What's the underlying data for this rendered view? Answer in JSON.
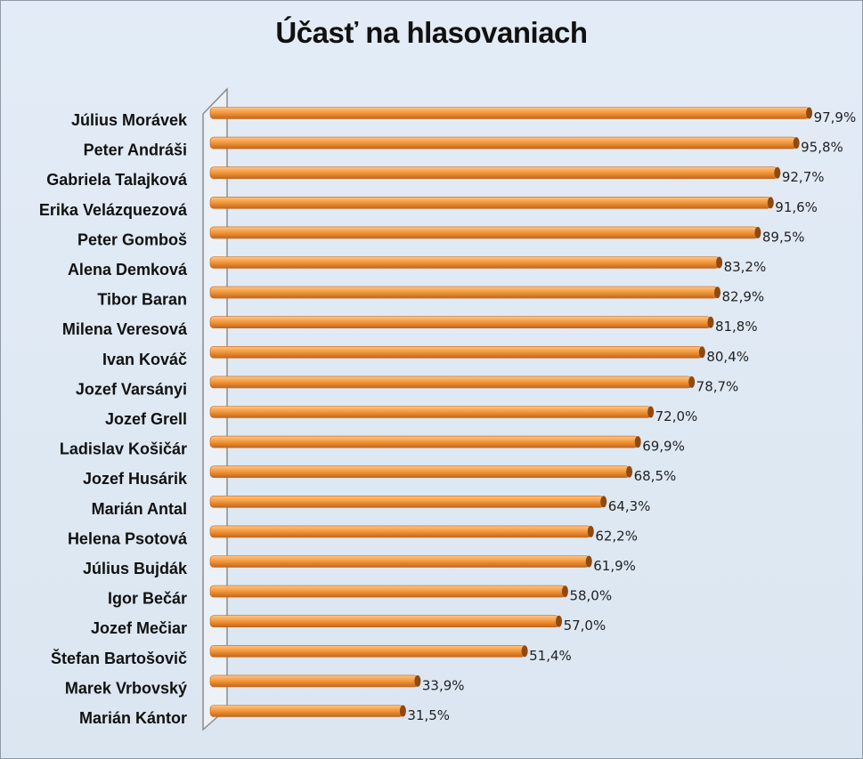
{
  "chart_data": {
    "type": "bar",
    "orientation": "horizontal",
    "title": "Účasť na hlasovaniach",
    "xlim": [
      0,
      100
    ],
    "grid": false,
    "legend": "none",
    "categories": [
      "Július Morávek",
      "Peter Andráši",
      "Gabriela Talajková",
      "Erika Velázquezová",
      "Peter Gomboš",
      "Alena Demková",
      "Tibor Baran",
      "Milena Veresová",
      "Ivan Kováč",
      "Jozef Varsányi",
      "Jozef Grell",
      "Ladislav Košičár",
      "Jozef Husárik",
      "Marián Antal",
      "Helena Psotová",
      "Július Bujdák",
      "Igor Bečár",
      "Jozef Mečiar",
      "Štefan Bartošovič",
      "Marek Vrbovský",
      "Marián Kántor"
    ],
    "values": [
      97.9,
      95.8,
      92.7,
      91.6,
      89.5,
      83.2,
      82.9,
      81.8,
      80.4,
      78.7,
      72.0,
      69.9,
      68.5,
      64.3,
      62.2,
      61.9,
      58.0,
      57.0,
      51.4,
      33.9,
      31.5
    ],
    "data_labels": [
      "97,9%",
      "95,8%",
      "92,7%",
      "91,6%",
      "89,5%",
      "83,2%",
      "82,9%",
      "81,8%",
      "80,4%",
      "78,7%",
      "72,0%",
      "69,9%",
      "68,5%",
      "64,3%",
      "62,2%",
      "61,9%",
      "58,0%",
      "57,0%",
      "51,4%",
      "33,9%",
      "31,5%"
    ],
    "colors": {
      "bar": "#f59a3c",
      "bar_light": "#fcc58a",
      "bar_dark": "#c4661b",
      "bar_cap": "#8f4a12"
    }
  }
}
